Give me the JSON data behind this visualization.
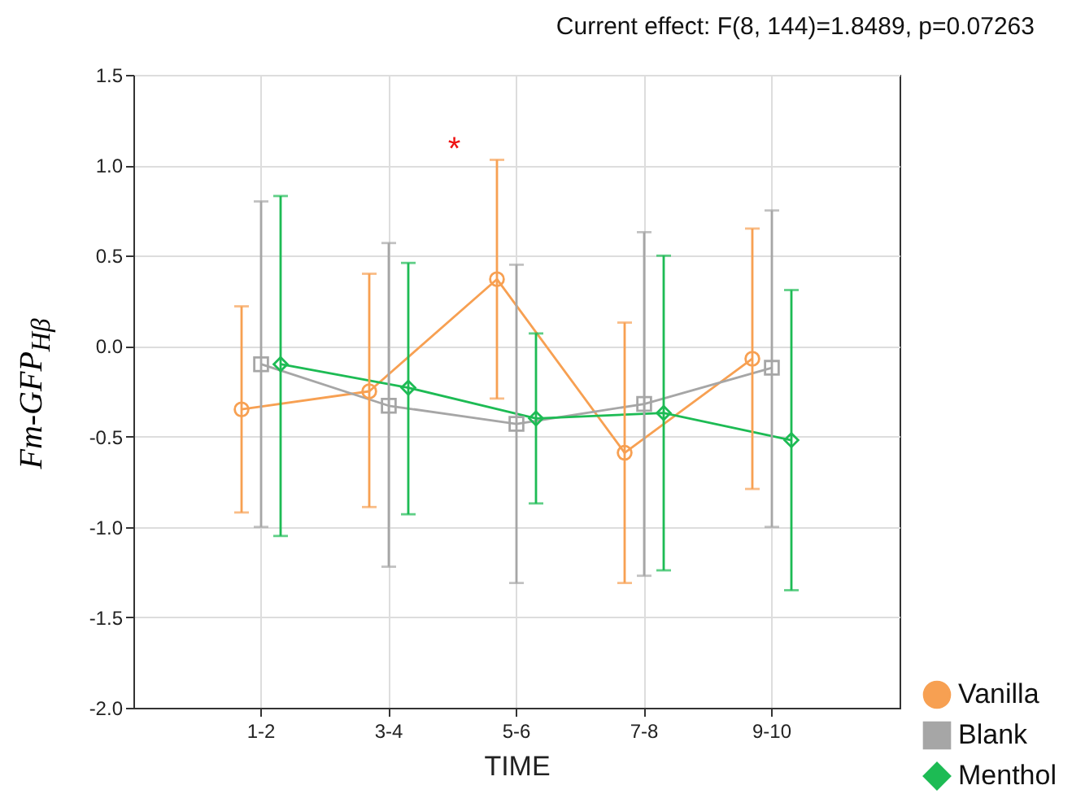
{
  "chart_data": {
    "type": "line",
    "title": "Current effect: F(8, 144)=1.8489, p=0.07263",
    "xlabel": "TIME",
    "ylabel": "Fm-GFP$_{Hβ}$",
    "categories": [
      "1-2",
      "3-4",
      "5-6",
      "7-8",
      "9-10"
    ],
    "series": [
      {
        "name": "Vanilla",
        "color": "#f7a052",
        "marker": "circle",
        "values": [
          -0.35,
          -0.25,
          0.37,
          -0.59,
          -0.07
        ],
        "errors": [
          [
            -0.92,
            0.22
          ],
          [
            -0.89,
            0.4
          ],
          [
            -0.29,
            1.03
          ],
          [
            -1.31,
            0.13
          ],
          [
            -0.79,
            0.65
          ]
        ]
      },
      {
        "name": "Blank",
        "color": "#a6a6a6",
        "marker": "square",
        "values": [
          -0.1,
          -0.33,
          -0.43,
          -0.32,
          -0.12
        ],
        "errors": [
          [
            -1.0,
            0.8
          ],
          [
            -1.22,
            0.57
          ],
          [
            -1.31,
            0.45
          ],
          [
            -1.27,
            0.63
          ],
          [
            -1.0,
            0.75
          ]
        ]
      },
      {
        "name": "Menthol",
        "color": "#1dbb54",
        "marker": "diamond",
        "values": [
          -0.1,
          -0.23,
          -0.4,
          -0.37,
          -0.52
        ],
        "errors": [
          [
            -1.05,
            0.83
          ],
          [
            -0.93,
            0.46
          ],
          [
            -0.87,
            0.07
          ],
          [
            -1.24,
            0.5
          ],
          [
            -1.35,
            0.31
          ]
        ]
      }
    ],
    "ylim": [
      -2.0,
      1.5
    ],
    "yticks": [
      {
        "value": -2,
        "label": "-2.0"
      },
      {
        "value": -1.5,
        "label": "-1.5"
      },
      {
        "value": -1,
        "label": "-1.0"
      },
      {
        "value": -0.5,
        "label": "-0.5"
      },
      {
        "value": 0,
        "label": "0.0"
      },
      {
        "value": 0.5,
        "label": "0.5"
      },
      {
        "value": 1,
        "label": "1.0"
      },
      {
        "value": 1.5,
        "label": "1.5"
      }
    ],
    "grid": true,
    "legend": "bottom right",
    "annotations": [
      "*"
    ]
  }
}
